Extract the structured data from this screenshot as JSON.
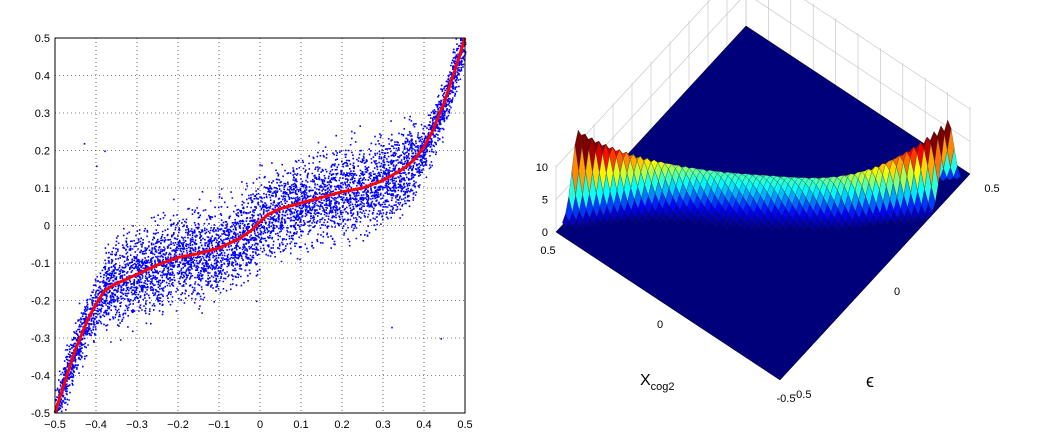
{
  "chart_data": [
    {
      "type": "scatter",
      "title": "",
      "xlabel": "",
      "ylabel": "",
      "xlim": [
        -0.5,
        0.5
      ],
      "ylim": [
        -0.5,
        0.5
      ],
      "grid": true,
      "x_ticks": [
        "−0.5",
        "−0.4",
        "−0.3",
        "−0.2",
        "−0.1",
        "0",
        "0.1",
        "0.2",
        "0.3",
        "0.4",
        "0.5"
      ],
      "y_ticks": [
        "0.5",
        "0.4",
        "0.3",
        "0.2",
        "0.1",
        "0",
        "-0.1",
        "-0.2",
        "-0.3",
        "-0.4",
        "-0.5"
      ],
      "series": [
        {
          "kind": "points",
          "color": "#0000ff",
          "approx_count": 10000,
          "description_points": "dense scatter around an odd, S-shaped curve; spread about ±0.09 in the middle, narrowing at the ends"
        },
        {
          "kind": "line",
          "color": "#ff0000",
          "x": [
            -0.5,
            -0.48,
            -0.45,
            -0.42,
            -0.4,
            -0.38,
            -0.36,
            -0.34,
            -0.3,
            -0.25,
            -0.2,
            -0.15,
            -0.1,
            -0.05,
            -0.02,
            0,
            0.02,
            0.05,
            0.1,
            0.15,
            0.2,
            0.25,
            0.3,
            0.34,
            0.36,
            0.38,
            0.4,
            0.42,
            0.45,
            0.48,
            0.5
          ],
          "y": [
            -0.5,
            -0.43,
            -0.33,
            -0.25,
            -0.21,
            -0.175,
            -0.16,
            -0.15,
            -0.13,
            -0.105,
            -0.085,
            -0.075,
            -0.06,
            -0.035,
            -0.012,
            0.01,
            0.03,
            0.045,
            0.06,
            0.075,
            0.09,
            0.1,
            0.12,
            0.145,
            0.16,
            0.18,
            0.21,
            0.25,
            0.33,
            0.43,
            0.5
          ]
        }
      ]
    },
    {
      "type": "surface",
      "title": "",
      "x_axis_label": "X",
      "x_axis_label_sub": "cog2",
      "y_axis_label": "ϵ",
      "z_ticks": [
        "10",
        "5",
        "0"
      ],
      "x_ticks": [
        "0.5",
        "0",
        "-0.5"
      ],
      "y_ticks": [
        "0.5",
        "0",
        "-0.5"
      ],
      "zlim": [
        0,
        10
      ],
      "xlim": [
        -0.5,
        0.5
      ],
      "ylim": [
        -0.5,
        0.5
      ],
      "colormap": "jet",
      "grid": true
    }
  ]
}
